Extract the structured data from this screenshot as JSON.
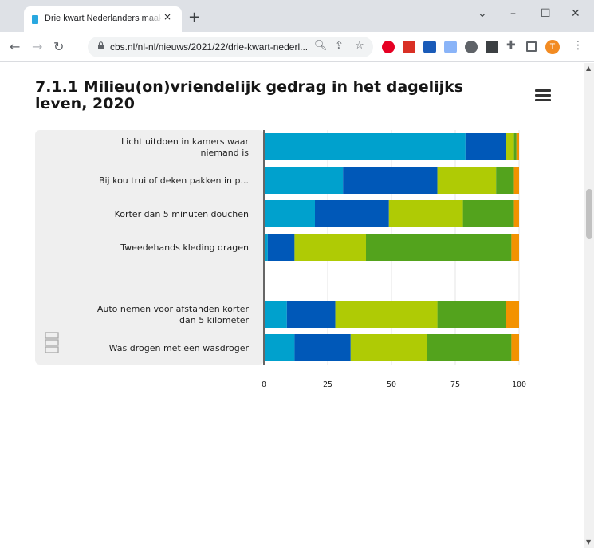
{
  "browser": {
    "tab_title": "Drie kwart Nederlanders maakt z",
    "tab_close": "×",
    "new_tab": "+",
    "url": "cbs.nl/nl-nl/nieuws/2021/22/drie-kwart-nederl...",
    "profile_initial": "T",
    "window_controls": {
      "minimize": "–",
      "maximize": "☐",
      "close": "✕",
      "dropdown": "⌄"
    }
  },
  "chart_data": {
    "type": "bar",
    "orientation": "horizontal",
    "stacked": true,
    "title": "7.1.1 Milieu(on)vriendelijk gedrag in het dagelijks leven, 2020",
    "categories": [
      "Licht uitdoen in kamers waar niemand is",
      "Bij kou trui of deken pakken in p...",
      "Korter dan 5 minuten douchen",
      "Tweedehands kleding dragen",
      "",
      "Auto nemen voor afstanden korter dan 5 kilometer",
      "Was drogen met een wasdroger"
    ],
    "series": [
      {
        "color": "#00a1cd",
        "values": [
          79,
          31,
          20,
          1.5,
          null,
          9,
          12
        ]
      },
      {
        "color": "#0058b8",
        "values": [
          16,
          37,
          29,
          10.5,
          null,
          19,
          22
        ]
      },
      {
        "color": "#afcb05",
        "values": [
          3,
          23,
          29,
          28,
          null,
          40,
          30
        ]
      },
      {
        "color": "#53a31d",
        "values": [
          1,
          7,
          20,
          57,
          null,
          27,
          33
        ]
      },
      {
        "color": "#f39200",
        "values": [
          1,
          2,
          2,
          3,
          null,
          5,
          3
        ]
      }
    ],
    "xlim": [
      0,
      100
    ],
    "x_ticks": [
      "0",
      "25",
      "50",
      "75",
      "100"
    ],
    "grid": true
  },
  "labels_wrapped": [
    [
      "Licht uitdoen in kamers waar",
      "niemand is"
    ],
    [
      "Bij kou trui of deken pakken in p..."
    ],
    [
      "Korter dan 5 minuten douchen"
    ],
    [
      "Tweedehands kleding dragen"
    ],
    [],
    [
      "Auto nemen voor afstanden korter",
      "dan 5 kilometer"
    ],
    [
      "Was drogen met een wasdroger"
    ]
  ],
  "colors": {
    "plot_band": "#efefef",
    "axis": "#666666",
    "grid": "#e6e6e6"
  },
  "logo_name": "cbs-logo"
}
